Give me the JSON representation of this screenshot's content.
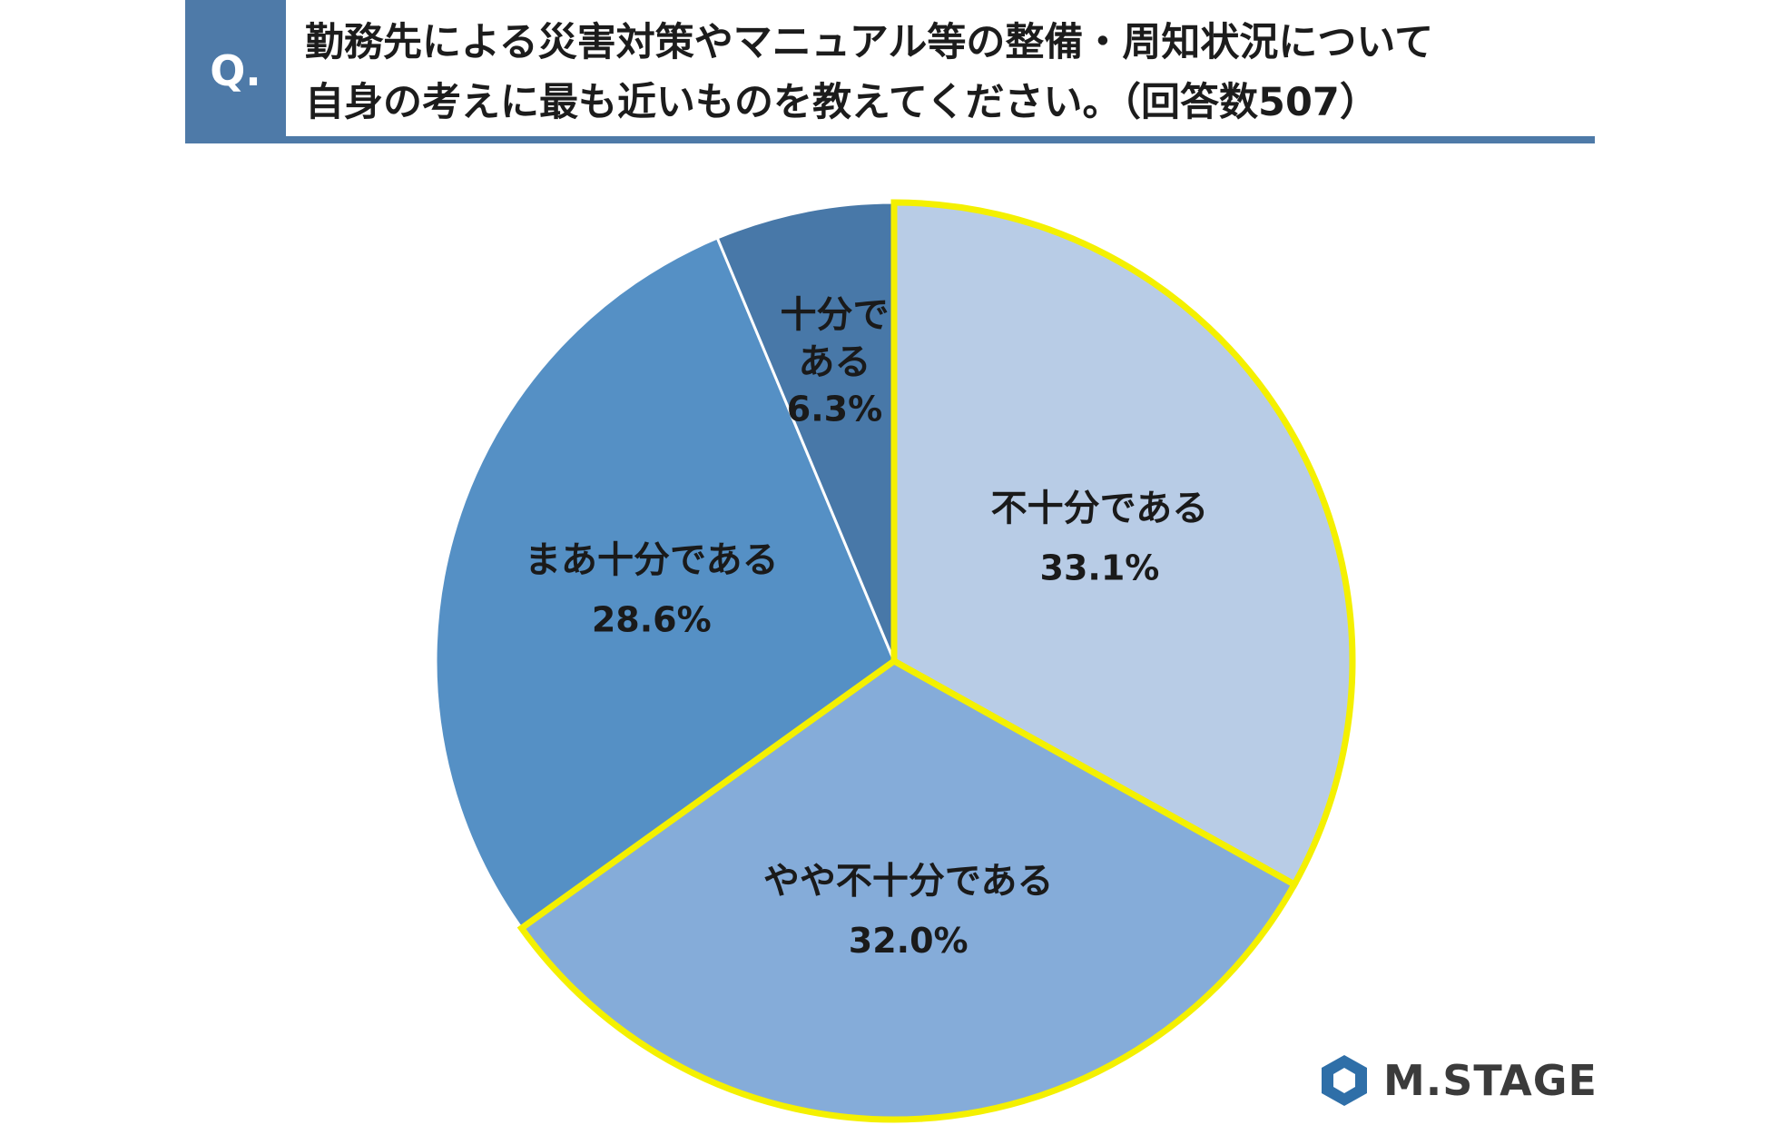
{
  "header": {
    "q_label": "Q.",
    "question_line1": "勤務先による災害対策やマニュアル等の整備・周知状況について",
    "question_line2": "自身の考えに最も近いものを教えてください。（回答数507）"
  },
  "chart_data": {
    "type": "pie",
    "start": "12 o'clock",
    "direction": "clockwise",
    "slices": [
      {
        "label": "不十分である",
        "value": 33.1,
        "value_label": "33.1%",
        "color": "#b8cce6",
        "highlight": true
      },
      {
        "label": "やや不十分である",
        "value": 32.0,
        "value_label": "32.0%",
        "color": "#85acd9",
        "highlight": true
      },
      {
        "label": "まあ十分である",
        "value": 28.6,
        "value_label": "28.6%",
        "color": "#5590c5",
        "highlight": false
      },
      {
        "label": "十分である",
        "label_lines": [
          "十分で",
          "ある"
        ],
        "value": 6.3,
        "value_label": "6.3%",
        "color": "#4878a8",
        "highlight": false
      }
    ],
    "highlight_color": "#f4f000"
  },
  "logo": {
    "text": "M.STAGE",
    "icon": "hexagon-logo-icon",
    "color": "#2f6fa8"
  }
}
